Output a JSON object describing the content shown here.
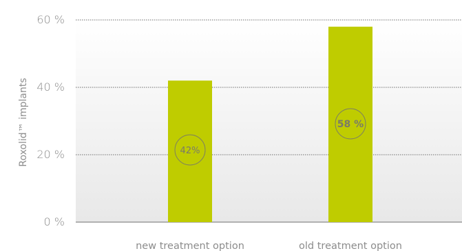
{
  "chart_data": {
    "type": "bar",
    "categories": [
      "new treatment option",
      "old treatment option"
    ],
    "values": [
      42,
      58
    ],
    "data_labels": [
      "42%",
      "58 %"
    ],
    "ylabel": "Roxolid™ implants",
    "xlabel": "",
    "ylim": [
      0,
      60
    ],
    "yticks": [
      0,
      20,
      40,
      60
    ],
    "ytick_labels": [
      "0 %",
      "20 %",
      "40 %",
      "60 %"
    ],
    "grid": true,
    "bar_color": "#bfcc00",
    "background_gradient": [
      "#ffffff",
      "#e8e8e8"
    ]
  }
}
